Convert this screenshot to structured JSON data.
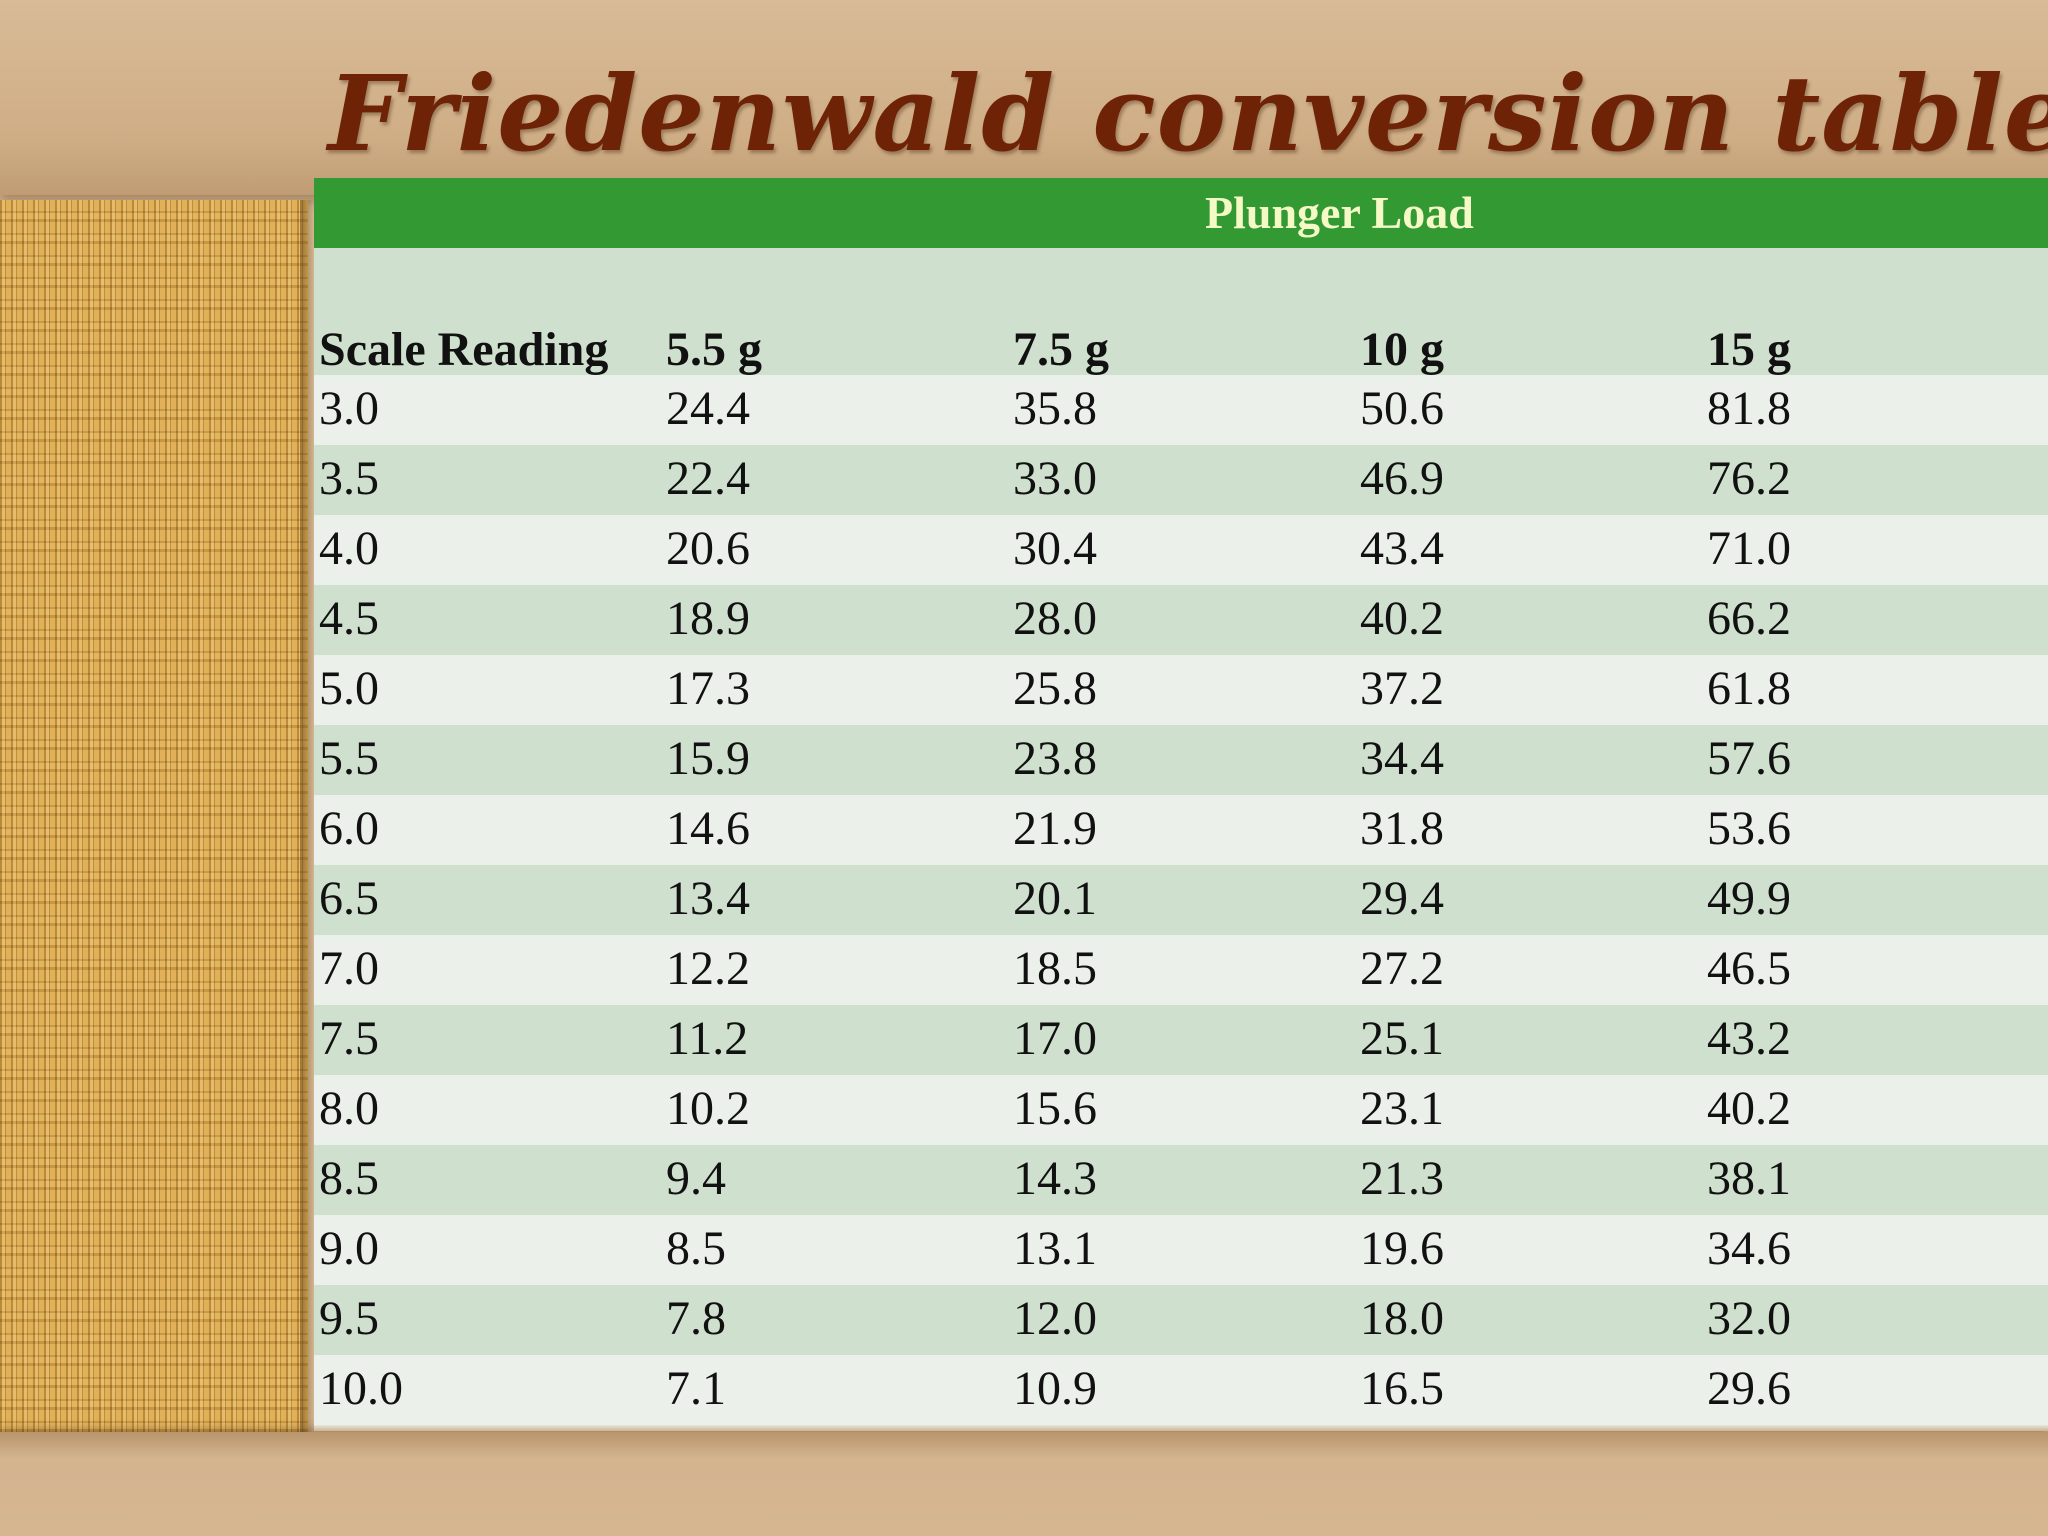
{
  "title": "Friedenwald conversion table",
  "table": {
    "group_header": "Plunger Load",
    "headers": [
      "Scale Reading",
      "5.5 g",
      "7.5 g",
      "10 g",
      "15 g"
    ],
    "rows": [
      [
        "3.0",
        "24.4",
        "35.8",
        "50.6",
        "81.8"
      ],
      [
        "3.5",
        "22.4",
        "33.0",
        "46.9",
        "76.2"
      ],
      [
        "4.0",
        "20.6",
        "30.4",
        "43.4",
        "71.0"
      ],
      [
        "4.5",
        "18.9",
        "28.0",
        "40.2",
        "66.2"
      ],
      [
        "5.0",
        "17.3",
        "25.8",
        "37.2",
        "61.8"
      ],
      [
        "5.5",
        "15.9",
        "23.8",
        "34.4",
        "57.6"
      ],
      [
        "6.0",
        "14.6",
        "21.9",
        "31.8",
        "53.6"
      ],
      [
        "6.5",
        "13.4",
        "20.1",
        "29.4",
        "49.9"
      ],
      [
        "7.0",
        "12.2",
        "18.5",
        "27.2",
        "46.5"
      ],
      [
        "7.5",
        "11.2",
        "17.0",
        "25.1",
        "43.2"
      ],
      [
        "8.0",
        "10.2",
        "15.6",
        "23.1",
        "40.2"
      ],
      [
        "8.5",
        "9.4",
        "14.3",
        "21.3",
        "38.1"
      ],
      [
        "9.0",
        "8.5",
        "13.1",
        "19.6",
        "34.6"
      ],
      [
        "9.5",
        "7.8",
        "12.0",
        "18.0",
        "32.0"
      ],
      [
        "10.0",
        "7.1",
        "10.9",
        "16.5",
        "29.6"
      ]
    ]
  },
  "colors": {
    "title": "#6e2206",
    "header_bar": "#339933",
    "header_text": "#f4f9c6",
    "row_light": "#ebf1ea",
    "row_dark": "#cfe0cf",
    "background": "#d2b48f"
  }
}
